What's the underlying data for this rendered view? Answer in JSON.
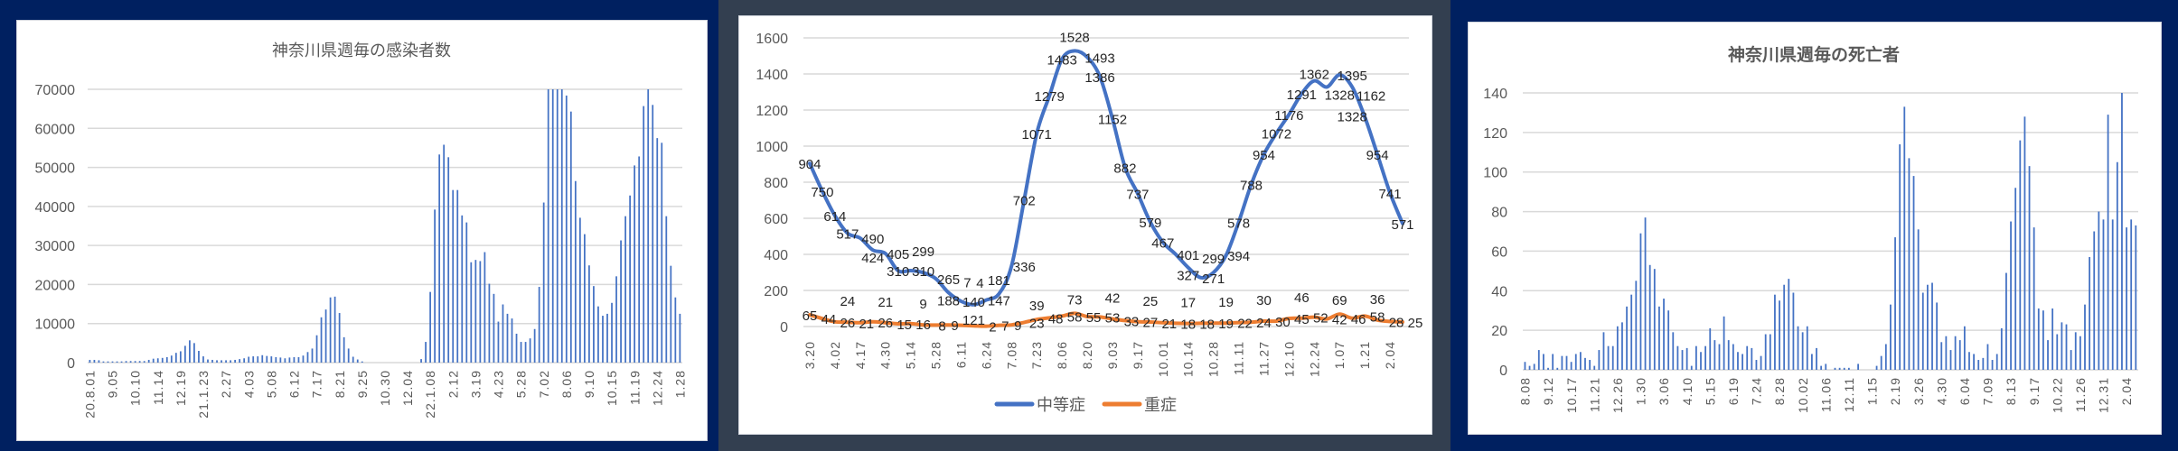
{
  "colors": {
    "panel_navy": "#002060",
    "panel_slate": "#333f50",
    "bar": "#4472c4",
    "line_moderate": "#4472c4",
    "line_severe": "#ed7d31",
    "grid": "#d9d9d9",
    "text": "#595959"
  },
  "chart_data": [
    {
      "type": "bar",
      "title": "神奈川県週毎の感染者数",
      "xlabel": "",
      "ylabel": "",
      "ylim": [
        0,
        70000
      ],
      "yticks": [
        "0",
        "10000",
        "20000",
        "30000",
        "40000",
        "50000",
        "60000",
        "70000"
      ],
      "tick_every": 5,
      "x_tick_labels": [
        "20.8.01",
        "9.05",
        "10.10",
        "11.14",
        "12.19",
        "21.1.23",
        "2.27",
        "4.03",
        "5.08",
        "6.12",
        "7.17",
        "8.21",
        "9.25",
        "10.30",
        "12.04",
        "22.1.08",
        "2.12",
        "3.19",
        "4.23",
        "5.28",
        "7.02",
        "8.06",
        "9.10",
        "10.15",
        "11.19",
        "12.24",
        "1.28"
      ],
      "values": [
        700,
        700,
        600,
        300,
        300,
        300,
        300,
        300,
        400,
        400,
        400,
        400,
        400,
        700,
        1000,
        1100,
        1200,
        1400,
        1800,
        2500,
        2900,
        4300,
        5700,
        5000,
        3000,
        1600,
        800,
        700,
        600,
        600,
        600,
        600,
        700,
        900,
        1100,
        1500,
        1600,
        1600,
        1900,
        1700,
        1600,
        1400,
        1300,
        1100,
        1300,
        1400,
        1400,
        1800,
        2700,
        3600,
        7000,
        11600,
        13600,
        16700,
        16900,
        12700,
        6500,
        3600,
        1500,
        800,
        300,
        0,
        0,
        0,
        0,
        0,
        0,
        0,
        0,
        0,
        0,
        0,
        0,
        900,
        5300,
        18100,
        39200,
        53300,
        55800,
        52600,
        44200,
        44200,
        37700,
        35900,
        25700,
        26300,
        26000,
        28300,
        20200,
        17600,
        10500,
        14900,
        12500,
        11300,
        7400,
        5300,
        5300,
        6200,
        8600,
        19400,
        41000,
        70000,
        70000,
        70000,
        70000,
        68400,
        64300,
        46500,
        37100,
        32900,
        24900,
        19600,
        14400,
        12000,
        12500,
        15300,
        22100,
        31300,
        37500,
        42800,
        50500,
        52800,
        65700,
        70000,
        66000,
        57500,
        56300,
        37500,
        24800,
        16700,
        12500
      ],
      "grid": true
    },
    {
      "type": "line",
      "title": "",
      "ylim": [
        0,
        1600
      ],
      "yticks": [
        "0",
        "200",
        "400",
        "600",
        "800",
        "1000",
        "1200",
        "1400",
        "1600"
      ],
      "tick_every": 2,
      "x_tick_labels": [
        "3.20",
        "4.02",
        "4.17",
        "4.30",
        "5.14",
        "5.28",
        "6.11",
        "6.24",
        "7.08",
        "7.23",
        "8.06",
        "8.20",
        "9.03",
        "9.17",
        "10.01",
        "10.14",
        "10.28",
        "11.11",
        "11.27",
        "12.10",
        "12.24",
        "1.07",
        "1.21",
        "2.04"
      ],
      "series": [
        {
          "name": "中等症",
          "color": "#4472c4",
          "values": [
            904,
            750,
            614,
            517,
            490,
            424,
            405,
            310,
            310,
            299,
            265,
            188,
            140,
            121,
            147,
            181,
            336,
            702,
            1071,
            1279,
            1483,
            1528,
            1493,
            1386,
            1152,
            882,
            737,
            579,
            467,
            401,
            327,
            271,
            299,
            394,
            578,
            788,
            954,
            1072,
            1176,
            1291,
            1362,
            1328,
            1395,
            1328,
            1162,
            954,
            741,
            571
          ]
        },
        {
          "name": "重症",
          "color": "#ed7d31",
          "values": [
            65,
            44,
            26,
            24,
            21,
            26,
            21,
            15,
            16,
            9,
            8,
            9,
            7,
            4,
            2,
            7,
            9,
            23,
            39,
            48,
            58,
            73,
            55,
            53,
            42,
            33,
            27,
            25,
            21,
            18,
            17,
            18,
            19,
            19,
            22,
            24,
            30,
            30,
            45,
            46,
            52,
            42,
            69,
            46,
            58,
            36,
            28,
            25
          ]
        }
      ],
      "legend": "bottom",
      "grid": true
    },
    {
      "type": "bar",
      "title": "神奈川県週毎の死亡者",
      "ylim": [
        0,
        140
      ],
      "yticks": [
        "0",
        "20",
        "40",
        "60",
        "80",
        "100",
        "120",
        "140"
      ],
      "tick_every": 5,
      "x_tick_labels": [
        "8.08",
        "9.12",
        "10.17",
        "11.21",
        "12.26",
        "1.30",
        "3.06",
        "4.10",
        "5.15",
        "6.19",
        "7.24",
        "8.28",
        "10.02",
        "11.06",
        "12.11",
        "1.15",
        "2.19",
        "3.26",
        "4.30",
        "6.04",
        "7.09",
        "8.13",
        "9.17",
        "10.22",
        "11.26",
        "12.31",
        "2.04"
      ],
      "values": [
        4,
        2,
        3,
        10,
        8,
        1,
        8,
        1,
        7,
        7,
        4,
        8,
        9,
        6,
        5,
        2,
        10,
        19,
        12,
        12,
        22,
        24,
        32,
        38,
        45,
        69,
        77,
        53,
        51,
        32,
        36,
        30,
        19,
        12,
        10,
        11,
        2,
        12,
        9,
        12,
        21,
        15,
        13,
        27,
        15,
        13,
        9,
        8,
        12,
        11,
        5,
        7,
        18,
        18,
        38,
        35,
        43,
        46,
        39,
        22,
        19,
        22,
        8,
        11,
        2,
        3,
        0,
        1,
        1,
        1,
        1,
        0,
        3,
        0,
        0,
        0,
        2,
        7,
        13,
        33,
        67,
        114,
        133,
        107,
        98,
        71,
        39,
        43,
        44,
        34,
        14,
        17,
        10,
        17,
        15,
        22,
        9,
        8,
        5,
        6,
        13,
        5,
        8,
        21,
        49,
        75,
        92,
        116,
        128,
        103,
        72,
        31,
        30,
        15,
        31,
        18,
        24,
        23,
        10,
        19,
        17,
        33,
        57,
        70,
        80,
        76,
        129,
        76,
        105,
        140,
        72,
        76,
        73
      ],
      "grid": true
    }
  ]
}
